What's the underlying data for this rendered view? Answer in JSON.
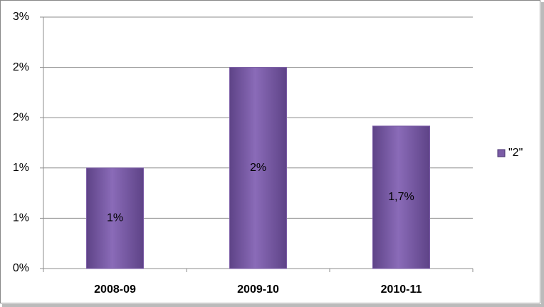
{
  "chart_data": {
    "type": "bar",
    "categories": [
      "2008-09",
      "2009-10",
      "2010-11"
    ],
    "series": [
      {
        "name": "\"2\"",
        "color": "#7b5ca6",
        "values": [
          1.2,
          2.4,
          1.7
        ],
        "value_labels": [
          "1%",
          "2%",
          "1,7%"
        ]
      }
    ],
    "ylim": [
      0,
      3
    ],
    "yticks": [
      {
        "value": 0,
        "label": "0%"
      },
      {
        "value": 0.6,
        "label": "1%"
      },
      {
        "value": 1.2,
        "label": "1%"
      },
      {
        "value": 1.8,
        "label": "2%"
      },
      {
        "value": 2.4,
        "label": "2%"
      },
      {
        "value": 3,
        "label": "3%"
      }
    ],
    "grid": true,
    "legend": "right"
  }
}
